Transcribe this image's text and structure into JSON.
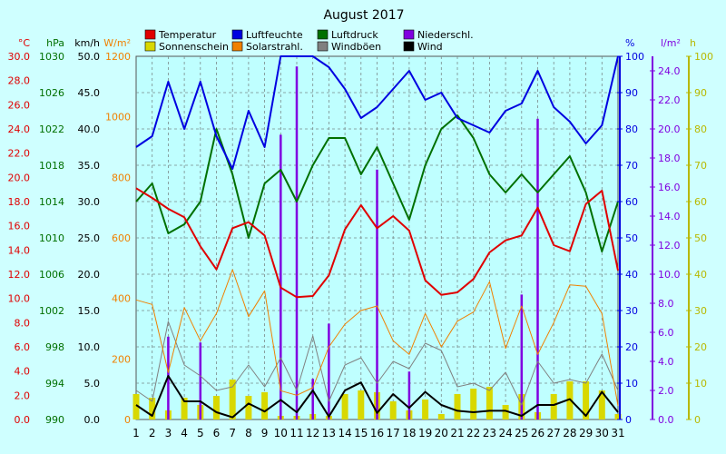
{
  "colors": {
    "background": "#cfffff",
    "plot_background": "#bfffff",
    "grid": "#7a8a8a",
    "temperature": "#e00000",
    "humidity": "#0000e0",
    "pressure": "#007000",
    "precip": "#8000e0",
    "wind": "#000000",
    "sunshine": "#d8d800",
    "solar": "#f08000",
    "gusts": "#808080"
  },
  "chart_data": {
    "type": "line",
    "title": "August 2017",
    "x": [
      1,
      2,
      3,
      4,
      5,
      6,
      7,
      8,
      9,
      10,
      11,
      12,
      13,
      14,
      15,
      16,
      17,
      18,
      19,
      20,
      21,
      22,
      23,
      24,
      25,
      26,
      27,
      28,
      29,
      30,
      31
    ],
    "axes": {
      "temperature": {
        "unit": "°C",
        "min": 0,
        "max": 30,
        "ticks": [
          "0.0",
          "2.0",
          "4.0",
          "6.0",
          "8.0",
          "10.0",
          "12.0",
          "14.0",
          "16.0",
          "18.0",
          "20.0",
          "22.0",
          "24.0",
          "26.0",
          "28.0",
          "30.0"
        ]
      },
      "pressure": {
        "unit": "hPa",
        "min": 990,
        "max": 1030,
        "ticks": [
          "990",
          "994",
          "998",
          "1002",
          "1006",
          "1010",
          "1014",
          "1018",
          "1022",
          "1026",
          "1030"
        ]
      },
      "wind": {
        "unit": "km/h",
        "min": 0,
        "max": 50,
        "ticks": [
          "0.0",
          "5.0",
          "10.0",
          "15.0",
          "20.0",
          "25.0",
          "30.0",
          "35.0",
          "40.0",
          "45.0",
          "50.0"
        ]
      },
      "solar": {
        "unit": "W/m²",
        "min": 0,
        "max": 1200,
        "ticks": [
          "0",
          "200",
          "400",
          "600",
          "800",
          "1000",
          "1200"
        ]
      },
      "humidity": {
        "unit": "%",
        "min": 0,
        "max": 100,
        "ticks": [
          "0",
          "10",
          "20",
          "30",
          "40",
          "50",
          "60",
          "70",
          "80",
          "90",
          "100"
        ]
      },
      "precip": {
        "unit": "l/m²",
        "min": 0,
        "max": 25,
        "ticks": [
          "0.0",
          "2.0",
          "4.0",
          "6.0",
          "8.0",
          "10.0",
          "12.0",
          "14.0",
          "16.0",
          "18.0",
          "20.0",
          "22.0",
          "24.0"
        ]
      },
      "sunshine": {
        "unit": "h",
        "min": 0,
        "max": 100,
        "ticks": [
          "0",
          "10",
          "20",
          "30",
          "40",
          "50",
          "60",
          "70",
          "80",
          "90",
          "100"
        ]
      }
    },
    "legend": [
      {
        "label": "Temperatur",
        "color": "#e00000"
      },
      {
        "label": "Sonnenschein",
        "color": "#d8d800"
      },
      {
        "label": "Luftfeuchte",
        "color": "#0000e0"
      },
      {
        "label": "Solarstrahl.",
        "color": "#f08000"
      },
      {
        "label": "Luftdruck",
        "color": "#007000"
      },
      {
        "label": "Windböen",
        "color": "#808080"
      },
      {
        "label": "Niederschl.",
        "color": "#8000e0"
      },
      {
        "label": "Wind",
        "color": "#000000"
      }
    ],
    "series": [
      {
        "name": "Temperatur",
        "axis": "temperature",
        "color": "#e00000",
        "values": [
          19.1,
          18.3,
          17.4,
          16.7,
          14.3,
          12.4,
          15.8,
          16.3,
          15.2,
          10.9,
          10.1,
          10.2,
          11.9,
          15.7,
          17.7,
          15.8,
          16.8,
          15.6,
          11.5,
          10.3,
          10.5,
          11.6,
          13.8,
          14.8,
          15.2,
          17.5,
          14.4,
          13.9,
          17.8,
          18.9,
          12.3
        ]
      },
      {
        "name": "Luftfeuchte",
        "axis": "humidity",
        "color": "#0000e0",
        "values": [
          75,
          78,
          93,
          80,
          93,
          78,
          69,
          85,
          75,
          100,
          100,
          100,
          97,
          91,
          83,
          86,
          91,
          96,
          88,
          90,
          83,
          81,
          79,
          85,
          87,
          96,
          86,
          82,
          76,
          81,
          100
        ]
      },
      {
        "name": "Luftdruck",
        "axis": "pressure",
        "color": "#007000",
        "values": [
          1014,
          1016,
          1010.5,
          1011.5,
          1014,
          1022,
          1017,
          1010,
          1016,
          1017.5,
          1014,
          1018,
          1021,
          1021,
          1017,
          1020,
          1016,
          1012,
          1018,
          1022,
          1023.5,
          1021,
          1017,
          1015,
          1017,
          1015,
          1017,
          1019,
          1015,
          1008.5,
          1014
        ]
      },
      {
        "name": "Wind",
        "axis": "wind",
        "color": "#000000",
        "values": [
          2,
          0.5,
          6,
          2.5,
          2.5,
          1,
          0.3,
          2.2,
          1.1,
          2.7,
          1,
          4,
          0.4,
          4,
          5.1,
          0.9,
          3.5,
          1.6,
          3.8,
          2,
          1.2,
          1,
          1.2,
          1.2,
          0.5,
          2,
          2,
          2.8,
          0.5,
          3.8,
          1
        ]
      },
      {
        "name": "Windböen",
        "axis": "wind",
        "color": "#808080",
        "values": [
          4,
          2.5,
          13.5,
          7.5,
          6,
          4,
          4.5,
          7.5,
          4.5,
          8.5,
          4,
          11.5,
          2.5,
          7.5,
          8.5,
          5,
          8,
          7,
          10.5,
          9.5,
          4.5,
          5,
          4,
          6.5,
          2,
          8,
          5,
          5.5,
          5,
          9,
          4
        ]
      },
      {
        "name": "Solarstrahl.",
        "axis": "solar",
        "color": "#f08000",
        "values": [
          395,
          380,
          155,
          370,
          260,
          350,
          495,
          340,
          425,
          95,
          80,
          105,
          240,
          315,
          360,
          375,
          260,
          215,
          350,
          240,
          325,
          355,
          455,
          235,
          375,
          215,
          320,
          445,
          440,
          350,
          45
        ]
      },
      {
        "name": "Sonnenschein",
        "axis": "sunshine",
        "type": "bar",
        "color": "#d8d800",
        "values": [
          7,
          6,
          2.5,
          6,
          4,
          6.5,
          11,
          6.5,
          7.5,
          1,
          1,
          1.5,
          1,
          7,
          8,
          7.5,
          5,
          2.5,
          5.5,
          1.5,
          7,
          8.5,
          9,
          4,
          7,
          2,
          7,
          10.5,
          10.5,
          8,
          1.5
        ]
      },
      {
        "name": "Niederschl.",
        "axis": "precip",
        "type": "bar",
        "color": "#8000e0",
        "values": [
          0,
          0,
          5.7,
          0,
          5.3,
          0,
          0,
          0,
          0,
          19.6,
          24.3,
          2.8,
          6.6,
          0,
          0,
          17.2,
          0,
          3.3,
          0,
          0,
          0,
          0,
          0,
          0,
          8.6,
          20.7,
          0,
          0,
          0,
          0,
          0
        ]
      }
    ]
  }
}
